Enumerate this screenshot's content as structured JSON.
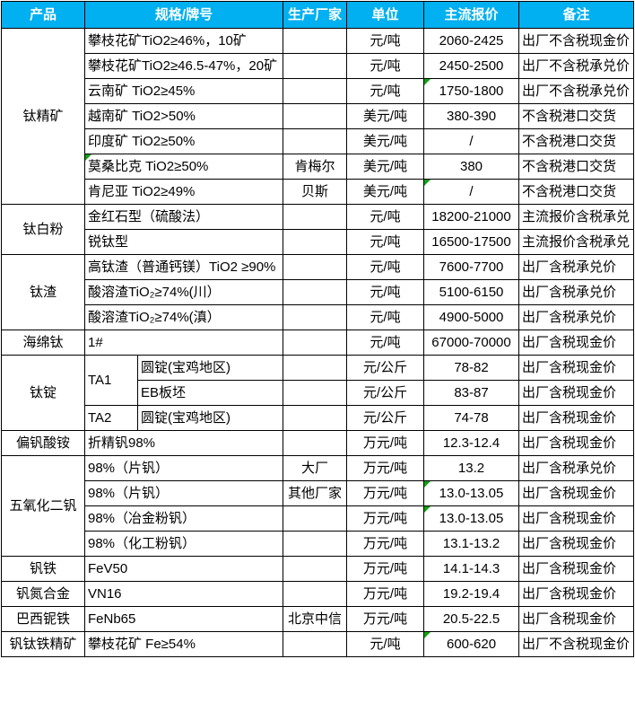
{
  "colors": {
    "header_bg": "#00B0F0",
    "header_text": "#FFFFFF",
    "grid_border": "#000000",
    "flag_green": "#12A012",
    "body_text": "#000000"
  },
  "icons": {
    "flag": "error-check-flag-triangle"
  },
  "table": {
    "headers": [
      "产品",
      "规格/牌号",
      "生产厂家",
      "单位",
      "主流报价",
      "备注"
    ],
    "rows": [
      {
        "product": "钛精矿",
        "product_span": 7,
        "spec": "攀枝花矿TiO2≥46%，10矿",
        "mfr": "",
        "unit": "元/吨",
        "price": "2060-2425",
        "note": "出厂不含税现金价"
      },
      {
        "spec": "攀枝花矿TiO2≥46.5-47%，20矿",
        "mfr": "",
        "unit": "元/吨",
        "price": "2450-2500",
        "note": "出厂不含税承兑价"
      },
      {
        "spec": "云南矿 TiO2≥45%",
        "mfr": "",
        "unit": "元/吨",
        "price": "1750-1800",
        "price_flag": true,
        "note": "出厂不含税承兑价"
      },
      {
        "spec": "越南矿 TiO2>50%",
        "mfr": "",
        "unit": "美元/吨",
        "price": "380-390",
        "note": "不含税港口交货"
      },
      {
        "spec": "印度矿 TiO2≥50%",
        "mfr": "",
        "unit": "美元/吨",
        "price": "/",
        "note": "不含税港口交货"
      },
      {
        "spec": "莫桑比克 TiO2≥50%",
        "spec_flag": true,
        "mfr": "肯梅尔",
        "unit": "美元/吨",
        "price": "380",
        "note": "不含税港口交货"
      },
      {
        "spec": "肯尼亚 TiO2≥49%",
        "mfr": "贝斯",
        "unit": "美元/吨",
        "price": "/",
        "price_flag": true,
        "note": "不含税港口交货"
      },
      {
        "product": "钛白粉",
        "product_span": 2,
        "spec": "金红石型（硫酸法）",
        "mfr": "",
        "unit": "元/吨",
        "price": "18200-21000",
        "note": "主流报价含税承兑"
      },
      {
        "spec": "锐钛型",
        "mfr": "",
        "unit": "元/吨",
        "price": "16500-17500",
        "note": "主流报价含税承兑"
      },
      {
        "product": "钛渣",
        "product_span": 3,
        "spec": "高钛渣（普通钙镁）TiO2 ≥90%",
        "mfr": "",
        "unit": "元/吨",
        "price": "7600-7700",
        "note": "出厂含税承兑价"
      },
      {
        "spec": "酸溶渣TiO₂≥74%(川）",
        "mfr": "",
        "unit": "元/吨",
        "price": "5100-6150",
        "note": "出厂含税承兑价"
      },
      {
        "spec": "酸溶渣TiO₂≥74%(滇）",
        "mfr": "",
        "unit": "元/吨",
        "price": "4900-5000",
        "note": "出厂含税承兑价"
      },
      {
        "product": "海绵钛",
        "product_span": 1,
        "spec": "1#",
        "mfr": "",
        "unit": "元/吨",
        "price": "67000-70000",
        "note": "出厂含税现金价"
      },
      {
        "product": "钛锭",
        "product_span": 3,
        "spec_a": "TA1",
        "spec_a_span": 2,
        "spec_b": "圆锭(宝鸡地区)",
        "mfr": "",
        "unit": "元/公斤",
        "price": "78-82",
        "note": "出厂含税现金价"
      },
      {
        "spec_b": "EB板坯",
        "mfr": "",
        "unit": "元/公斤",
        "price": "83-87",
        "note": "出厂含税现金价"
      },
      {
        "spec_a": "TA2",
        "spec_a_span": 1,
        "spec_b": "圆锭(宝鸡地区)",
        "mfr": "",
        "unit": "元/公斤",
        "price": "74-78",
        "note": "出厂含税现金价"
      },
      {
        "product": "偏钒酸铵",
        "product_span": 1,
        "spec": "折精钒98%",
        "mfr": "",
        "unit": "万元/吨",
        "price": "12.3-12.4",
        "note": "出厂含税现金价"
      },
      {
        "product": "五氧化二钒",
        "product_span": 4,
        "spec": "98%（片钒）",
        "mfr": "大厂",
        "unit": "万元/吨",
        "price": "13.2",
        "note": "出厂含税承兑价"
      },
      {
        "spec": "98%（片钒）",
        "mfr": "其他厂家",
        "unit": "万元/吨",
        "price": "13.0-13.05",
        "price_flag": true,
        "note": "出厂含税现金价"
      },
      {
        "spec": "98%（冶金粉钒）",
        "mfr": "",
        "unit": "万元/吨",
        "price": "13.0-13.05",
        "price_flag": true,
        "note": "出厂含税现金价"
      },
      {
        "spec": "98%（化工粉钒）",
        "mfr": "",
        "unit": "万元/吨",
        "price": "13.1-13.2",
        "note": "出厂含税现金价"
      },
      {
        "product": "钒铁",
        "product_span": 1,
        "spec": "FeV50",
        "mfr": "",
        "unit": "万元/吨",
        "price": "14.1-14.3",
        "note": "出厂含税现金价"
      },
      {
        "product": "钒氮合金",
        "product_span": 1,
        "spec": "VN16",
        "mfr": "",
        "unit": "万元/吨",
        "price": "19.2-19.4",
        "note": "出厂含税现金价"
      },
      {
        "product": "巴西铌铁",
        "product_span": 1,
        "spec": "FeNb65",
        "mfr": "北京中信",
        "unit": "万元/吨",
        "price": "20.5-22.5",
        "note": "出厂含税现金价"
      },
      {
        "product": "钒钛铁精矿",
        "product_span": 1,
        "spec": "攀枝花矿 Fe≥54%",
        "mfr": "",
        "unit": "元/吨",
        "price": "600-620",
        "price_flag": true,
        "note": "出厂不含税现金价"
      }
    ]
  }
}
